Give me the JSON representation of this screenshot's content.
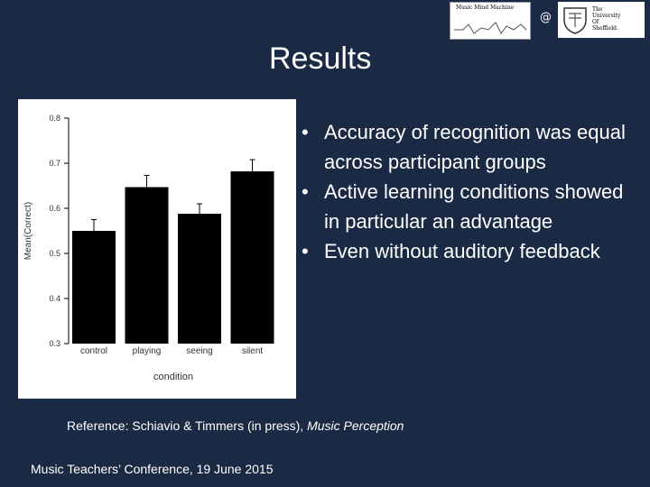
{
  "header": {
    "logo_left_text": "Music Mind Machine",
    "at_sign": "@",
    "logo_right_lines": [
      "The",
      "University",
      "Of",
      "Sheffield."
    ]
  },
  "slide": {
    "title": "Results",
    "bullets": [
      "Accuracy of recognition was equal across participant groups",
      "Active learning conditions showed in particular an advantage",
      "Even without auditory feedback"
    ],
    "reference_prefix": "Reference: Schiavio & Timmers (in press), ",
    "reference_journal": "Music Perception",
    "footer": "Music Teachers’ Conference, 19 June 2015"
  },
  "chart_data": {
    "type": "bar",
    "categories": [
      "control",
      "playing",
      "seeing",
      "silent"
    ],
    "values": [
      0.55,
      0.647,
      0.588,
      0.682
    ],
    "error_upper": [
      0.575,
      0.673,
      0.61,
      0.708
    ],
    "xlabel": "condition",
    "ylabel": "Mean(Correct)",
    "ylim": [
      0.3,
      0.8
    ],
    "yticks": [
      0.3,
      0.4,
      0.5,
      0.6,
      0.7,
      0.8
    ],
    "ytick_labels": [
      "0.3",
      "0.4",
      "0.5",
      "0.6",
      "0.7",
      "0.8"
    ],
    "bar_color": "#000000",
    "grid": false
  }
}
